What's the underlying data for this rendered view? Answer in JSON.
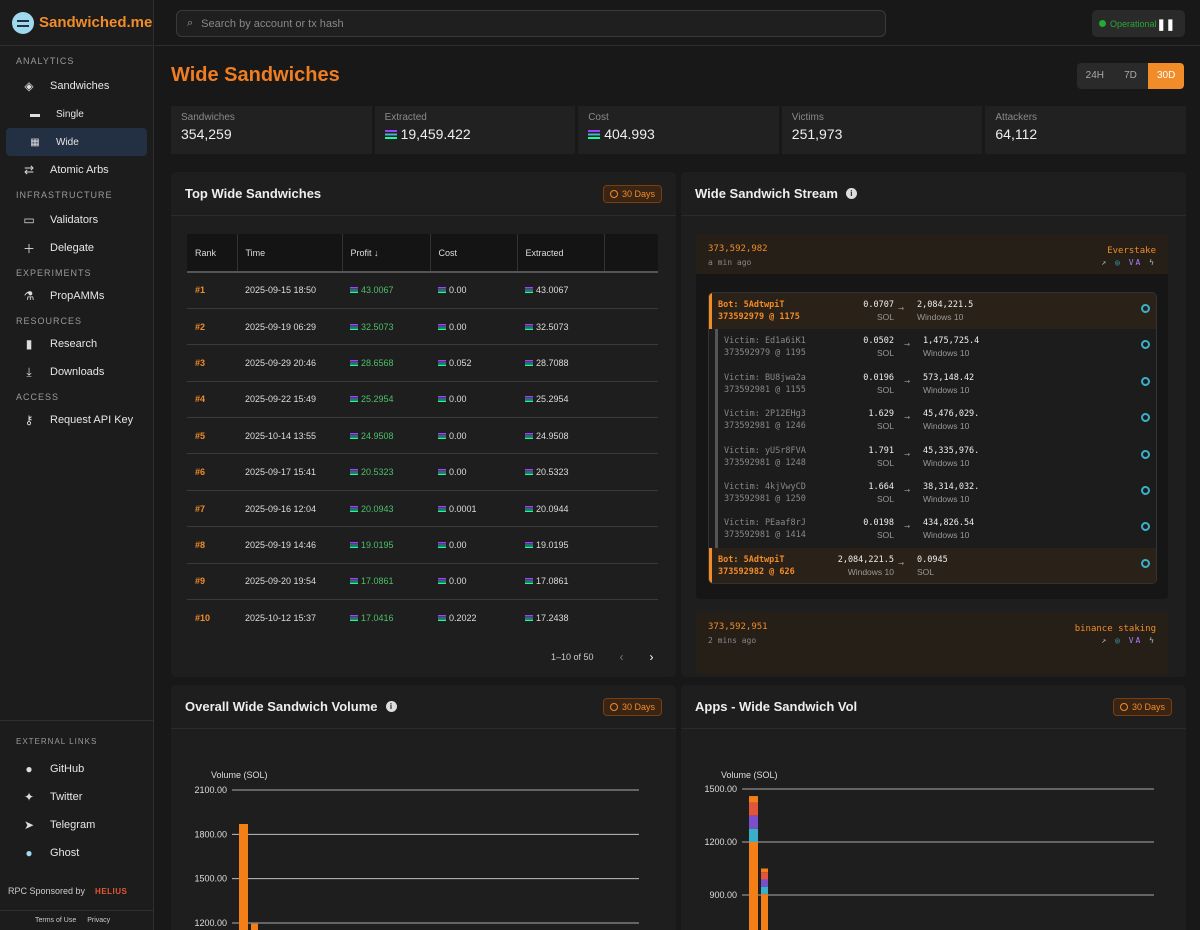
{
  "brand": {
    "name": "Sandwiched.me"
  },
  "sidebar": {
    "sections": [
      {
        "title": "ANALYTICS"
      },
      {
        "title": "INFRASTRUCTURE"
      },
      {
        "title": "EXPERIMENTS"
      },
      {
        "title": "RESOURCES"
      },
      {
        "title": "ACCESS"
      }
    ],
    "items": {
      "sandwiches": "Sandwiches",
      "single": "Single",
      "wide": "Wide",
      "atomic_arbs": "Atomic Arbs",
      "validators": "Validators",
      "delegate": "Delegate",
      "propamms": "PropAMMs",
      "research": "Research",
      "downloads": "Downloads",
      "request_api_key": "Request API Key"
    },
    "external_title": "EXTERNAL LINKS",
    "external": {
      "github": "GitHub",
      "twitter": "Twitter",
      "telegram": "Telegram",
      "ghost": "Ghost"
    },
    "rpc_label": "RPC Sponsored by",
    "rpc_sponsor": "HELIUS",
    "terms": "Terms of Use",
    "privacy": "Privacy"
  },
  "topbar": {
    "search_placeholder": "Search by account or tx hash",
    "status": "Operational",
    "status_color": "#22aa33"
  },
  "page": {
    "title": "Wide Sandwiches",
    "ranges": [
      "24H",
      "7D",
      "30D"
    ],
    "active_range": "30D",
    "accent": "#f28c28"
  },
  "stats": {
    "sandwiches": {
      "label": "Sandwiches",
      "value": "354,259"
    },
    "extracted": {
      "label": "Extracted",
      "value": "19,459.422"
    },
    "cost": {
      "label": "Cost",
      "value": "404.993"
    },
    "victims": {
      "label": "Victims",
      "value": "251,973"
    },
    "attackers": {
      "label": "Attackers",
      "value": "64,112"
    }
  },
  "top_table": {
    "title": "Top Wide Sandwiches",
    "badge": "30 Days",
    "columns": {
      "rank": "Rank",
      "time": "Time",
      "profit": "Profit",
      "cost": "Cost",
      "extracted": "Extracted"
    },
    "rows": [
      {
        "rank": "#1",
        "time": "2025-09-15 18:50",
        "profit": "43.0067",
        "cost": "0.00",
        "extracted": "43.0067"
      },
      {
        "rank": "#2",
        "time": "2025-09-19 06:29",
        "profit": "32.5073",
        "cost": "0.00",
        "extracted": "32.5073"
      },
      {
        "rank": "#3",
        "time": "2025-09-29 20:46",
        "profit": "28.6568",
        "cost": "0.052",
        "extracted": "28.7088"
      },
      {
        "rank": "#4",
        "time": "2025-09-22 15:49",
        "profit": "25.2954",
        "cost": "0.00",
        "extracted": "25.2954"
      },
      {
        "rank": "#5",
        "time": "2025-10-14 13:55",
        "profit": "24.9508",
        "cost": "0.00",
        "extracted": "24.9508"
      },
      {
        "rank": "#6",
        "time": "2025-09-17 15:41",
        "profit": "20.5323",
        "cost": "0.00",
        "extracted": "20.5323"
      },
      {
        "rank": "#7",
        "time": "2025-09-16 12:04",
        "profit": "20.0943",
        "cost": "0.0001",
        "extracted": "20.0944"
      },
      {
        "rank": "#8",
        "time": "2025-09-19 14:46",
        "profit": "19.0195",
        "cost": "0.00",
        "extracted": "19.0195"
      },
      {
        "rank": "#9",
        "time": "2025-09-20 19:54",
        "profit": "17.0861",
        "cost": "0.00",
        "extracted": "17.0861"
      },
      {
        "rank": "#10",
        "time": "2025-10-12 15:37",
        "profit": "17.0416",
        "cost": "0.2022",
        "extracted": "17.2438"
      }
    ],
    "pagination": "1–10 of 50"
  },
  "stream": {
    "title": "Wide Sandwich Stream",
    "bundle1": {
      "block": "373,592,982",
      "ago": "a min ago",
      "validator": "Everstake",
      "txs": [
        {
          "who1": "Bot: 5AdtwpiT",
          "who2": "373592979 @ 1175",
          "amt": "0.0707",
          "amt_unit": "SOL",
          "out": "2,084,221.5",
          "out_unit": "Windows 10"
        },
        {
          "who1": "Victim: Ed1a6iK1",
          "who2": "373592979 @ 1195",
          "amt": "0.0502",
          "amt_unit": "SOL",
          "out": "1,475,725.4",
          "out_unit": "Windows 10"
        },
        {
          "who1": "Victim: BU8jwa2a",
          "who2": "373592981 @ 1155",
          "amt": "0.0196",
          "amt_unit": "SOL",
          "out": "573,148.42",
          "out_unit": "Windows 10"
        },
        {
          "who1": "Victim: 2P12EHg3",
          "who2": "373592981 @ 1246",
          "amt": "1.629",
          "amt_unit": "SOL",
          "out": "45,476,029.",
          "out_unit": "Windows 10"
        },
        {
          "who1": "Victim: yUSr8FVA",
          "who2": "373592981 @ 1248",
          "amt": "1.791",
          "amt_unit": "SOL",
          "out": "45,335,976.",
          "out_unit": "Windows 10"
        },
        {
          "who1": "Victim: 4kjVwyCD",
          "who2": "373592981 @ 1250",
          "amt": "1.664",
          "amt_unit": "SOL",
          "out": "38,314,032.",
          "out_unit": "Windows 10"
        },
        {
          "who1": "Victim: PEaaf8rJ",
          "who2": "373592981 @ 1414",
          "amt": "0.0198",
          "amt_unit": "SOL",
          "out": "434,826.54",
          "out_unit": "Windows 10"
        },
        {
          "who1": "Bot: 5AdtwpiT",
          "who2": "373592982 @ 626",
          "amt": "2,084,221.5",
          "amt_unit": "Windows 10",
          "out": "0.0945",
          "out_unit": "SOL"
        }
      ]
    },
    "bundle2": {
      "block": "373,592,951",
      "ago": "2 mins ago",
      "validator": "binance staking"
    }
  },
  "volume_chart": {
    "title": "Overall Wide Sandwich Volume",
    "badge": "30 Days"
  },
  "apps_chart": {
    "title": "Apps - Wide Sandwich Vol",
    "badge": "30 Days"
  },
  "chart_data": [
    {
      "type": "bar",
      "title": "Overall Wide Sandwich Volume",
      "ylabel": "Volume (SOL)",
      "yticks": [
        "2100.00",
        "1800.00",
        "1500.00",
        "1200.00"
      ],
      "ylim": [
        1200,
        2100
      ],
      "values": [
        1870,
        1195
      ],
      "colors": [
        "#f57f17"
      ]
    },
    {
      "type": "bar",
      "title": "Apps - Wide Sandwich Vol",
      "ylabel": "Volume (SOL)",
      "yticks": [
        "1500.00",
        "1200.00",
        "900.00"
      ],
      "ylim": [
        900,
        1500
      ],
      "values": [
        1460,
        1050
      ],
      "colors": [
        "#f57f17",
        "#e0563c",
        "#7a4fc9",
        "#3ab0c8"
      ]
    }
  ]
}
